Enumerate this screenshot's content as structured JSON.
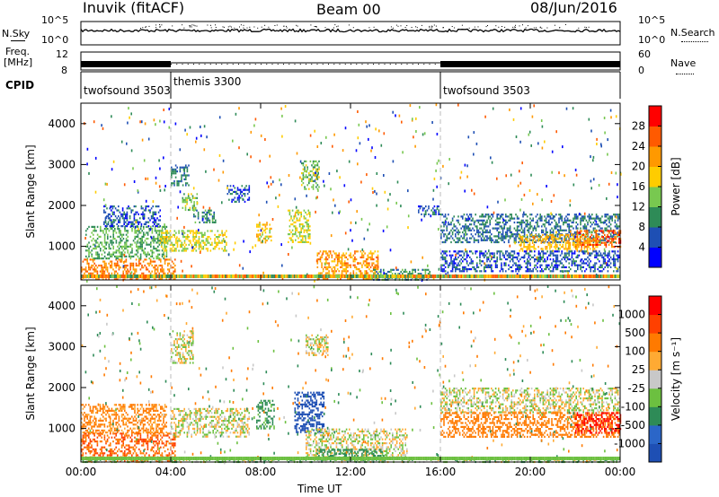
{
  "header": {
    "title_left": "Inuvik (fitACF)",
    "title_center": "Beam 00",
    "title_right": "08/Jun/2016"
  },
  "top_panels": {
    "nsky_label": "N.Sky",
    "nsky_ticks": [
      "10^5",
      "10^0"
    ],
    "nsearch_label": "N.Search",
    "nsearch_ticks": [
      "10^5",
      "10^0"
    ],
    "freq_label_1": "Freq.",
    "freq_label_2": "[MHz]",
    "freq_ticks": [
      "12",
      "8"
    ],
    "nave_label": "Nave",
    "nave_ticks": [
      "60",
      "0"
    ],
    "cpid_label": "CPID",
    "cpid_segments": [
      {
        "name": "twofsound 3503",
        "start": 0,
        "end": 4
      },
      {
        "name": "themis 3300",
        "start": 4,
        "end": 16
      },
      {
        "name": "twofsound 3503",
        "start": 16,
        "end": 24
      }
    ]
  },
  "chart_data": [
    {
      "type": "heatmap",
      "title": "",
      "xlabel": "Time UT",
      "ylabel": "Slant Range [km]",
      "xlim": [
        0,
        24
      ],
      "ylim": [
        180,
        4500
      ],
      "x_ticks": [
        "00:00",
        "04:00",
        "08:00",
        "12:00",
        "16:00",
        "20:00",
        "00:00"
      ],
      "y_ticks": [
        "1000",
        "2000",
        "3000",
        "4000"
      ],
      "colorbar": {
        "label": "Power [dB]",
        "ticks": [
          "4",
          "8",
          "12",
          "16",
          "20",
          "24",
          "28"
        ],
        "colors": [
          "#0000ff",
          "#1e4fb4",
          "#2e8b57",
          "#78c850",
          "#ffcc00",
          "#ff9900",
          "#ff5a00",
          "#ff0000"
        ]
      },
      "blobs": [
        {
          "t0": 0.0,
          "t1": 4.2,
          "r0": 200,
          "r1": 700,
          "v": 24
        },
        {
          "t0": 0.2,
          "t1": 3.8,
          "r0": 700,
          "r1": 1500,
          "v": 12
        },
        {
          "t0": 1.0,
          "t1": 3.5,
          "r0": 1500,
          "r1": 2000,
          "v": 6
        },
        {
          "t0": 3.5,
          "t1": 6.5,
          "r0": 900,
          "r1": 1400,
          "v": 16
        },
        {
          "t0": 4.0,
          "t1": 4.8,
          "r0": 2500,
          "r1": 3000,
          "v": 8
        },
        {
          "t0": 4.5,
          "t1": 5.2,
          "r0": 1900,
          "r1": 2300,
          "v": 14
        },
        {
          "t0": 5.0,
          "t1": 6.0,
          "r0": 1600,
          "r1": 1900,
          "v": 10
        },
        {
          "t0": 6.5,
          "t1": 7.5,
          "r0": 2100,
          "r1": 2500,
          "v": 6
        },
        {
          "t0": 7.8,
          "t1": 8.5,
          "r0": 1100,
          "r1": 1600,
          "v": 18
        },
        {
          "t0": 9.2,
          "t1": 10.2,
          "r0": 1100,
          "r1": 1900,
          "v": 16
        },
        {
          "t0": 9.8,
          "t1": 10.6,
          "r0": 2400,
          "r1": 3100,
          "v": 14
        },
        {
          "t0": 10.5,
          "t1": 13.2,
          "r0": 200,
          "r1": 900,
          "v": 22
        },
        {
          "t0": 13.0,
          "t1": 15.5,
          "r0": 200,
          "r1": 450,
          "v": 10
        },
        {
          "t0": 15.0,
          "t1": 16.0,
          "r0": 1800,
          "r1": 2000,
          "v": 6
        },
        {
          "t0": 16.0,
          "t1": 24.0,
          "r0": 1100,
          "r1": 1800,
          "v": 8
        },
        {
          "t0": 19.5,
          "t1": 23.0,
          "r0": 900,
          "r1": 1300,
          "v": 20
        },
        {
          "t0": 22.0,
          "t1": 24.0,
          "r0": 1000,
          "r1": 1400,
          "v": 26
        },
        {
          "t0": 16.0,
          "t1": 24.0,
          "r0": 400,
          "r1": 900,
          "v": 6
        }
      ]
    },
    {
      "type": "heatmap",
      "title": "",
      "xlabel": "Time UT",
      "ylabel": "Slant Range [km]",
      "xlim": [
        0,
        24
      ],
      "ylim": [
        180,
        4500
      ],
      "x_ticks": [
        "00:00",
        "04:00",
        "08:00",
        "12:00",
        "16:00",
        "20:00",
        "00:00"
      ],
      "y_ticks": [
        "1000",
        "2000",
        "3000",
        "4000"
      ],
      "colorbar": {
        "label": "Velocity [m s⁻¹]",
        "ticks": [
          "1000",
          "500",
          "100",
          "25",
          "-25",
          "-100",
          "-500",
          "-1000"
        ],
        "colors": [
          "#1e4fb4",
          "#2b66c8",
          "#2e8b57",
          "#6cc040",
          "#c8c8c8",
          "#ffaa33",
          "#ff7a00",
          "#ff4000",
          "#ff0000"
        ]
      },
      "blobs": [
        {
          "t0": 0.0,
          "t1": 4.2,
          "r0": 200,
          "r1": 900,
          "v": -300
        },
        {
          "t0": 0.0,
          "t1": 3.8,
          "r0": 900,
          "r1": 1600,
          "v": -150
        },
        {
          "t0": 4.0,
          "t1": 7.5,
          "r0": 800,
          "r1": 1500,
          "v": 0
        },
        {
          "t0": 4.0,
          "t1": 5.0,
          "r0": 2600,
          "r1": 3400,
          "v": 0
        },
        {
          "t0": 7.8,
          "t1": 8.6,
          "r0": 1000,
          "r1": 1700,
          "v": 150
        },
        {
          "t0": 9.5,
          "t1": 10.8,
          "r0": 900,
          "r1": 1900,
          "v": 900
        },
        {
          "t0": 10.0,
          "t1": 11.0,
          "r0": 2800,
          "r1": 3300,
          "v": 0
        },
        {
          "t0": 10.0,
          "t1": 14.5,
          "r0": 300,
          "r1": 1000,
          "v": 0
        },
        {
          "t0": 10.5,
          "t1": 13.5,
          "r0": 250,
          "r1": 500,
          "v": 200
        },
        {
          "t0": 16.0,
          "t1": 24.0,
          "r0": 1400,
          "r1": 2000,
          "v": 0
        },
        {
          "t0": 16.0,
          "t1": 24.0,
          "r0": 800,
          "r1": 1400,
          "v": -200
        },
        {
          "t0": 22.0,
          "t1": 24.0,
          "r0": 900,
          "r1": 1400,
          "v": -800
        },
        {
          "t0": 0.0,
          "t1": 24.0,
          "r0": 180,
          "r1": 300,
          "v": 50
        }
      ]
    }
  ]
}
